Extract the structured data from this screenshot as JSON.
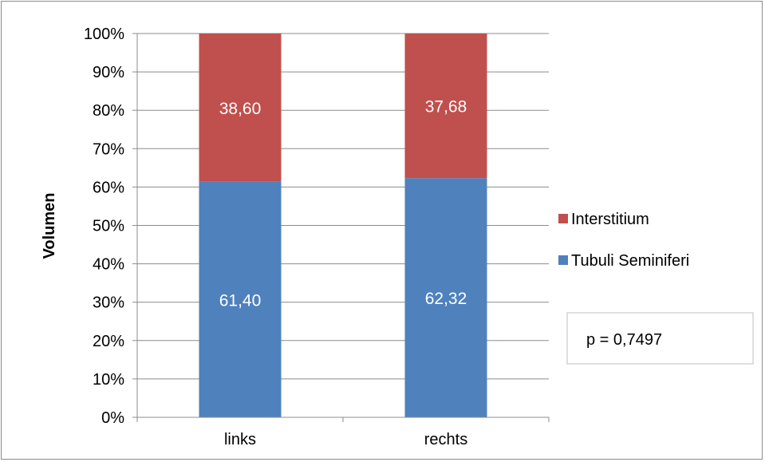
{
  "chart_data": {
    "type": "bar",
    "stacked": true,
    "percent_stacked": true,
    "categories": [
      "links",
      "rechts"
    ],
    "series": [
      {
        "name": "Tubuli Seminiferi",
        "values": [
          61.4,
          62.32
        ],
        "labels": [
          "61,40",
          "62,32"
        ],
        "color": "#4f81bd"
      },
      {
        "name": "Interstitium",
        "values": [
          38.6,
          37.68
        ],
        "labels": [
          "38,60",
          "37,68"
        ],
        "color": "#c0504d"
      }
    ],
    "ylabel": "Volumen",
    "xlabel": "",
    "ylim": [
      0,
      100
    ],
    "y_ticks": [
      "0%",
      "10%",
      "20%",
      "30%",
      "40%",
      "50%",
      "60%",
      "70%",
      "80%",
      "90%",
      "100%"
    ],
    "grid": true,
    "legend_position": "right",
    "annotation": "p = 0,7497"
  }
}
